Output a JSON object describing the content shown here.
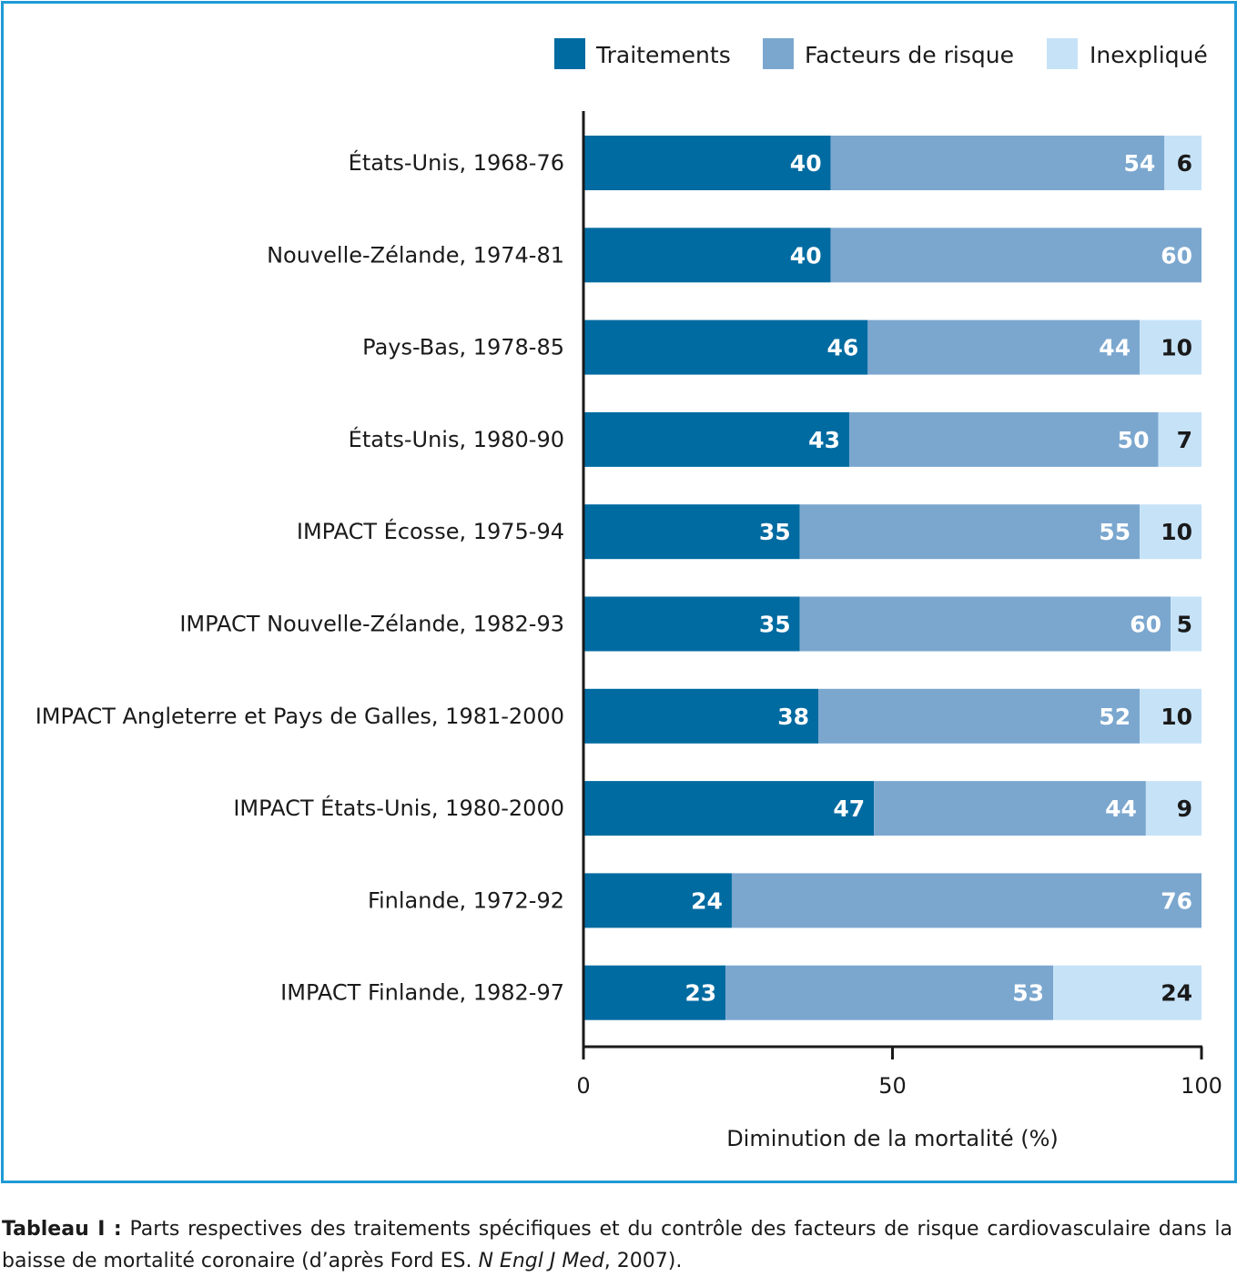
{
  "chart_data": {
    "type": "bar",
    "orientation": "horizontal",
    "stacked": true,
    "categories": [
      "États-Unis, 1968-76",
      "Nouvelle-Zélande, 1974-81",
      "Pays-Bas, 1978-85",
      "États-Unis, 1980-90",
      "IMPACT Écosse, 1975-94",
      "IMPACT Nouvelle-Zélande, 1982-93",
      "IMPACT Angleterre et Pays de Galles, 1981-2000",
      "IMPACT États-Unis, 1980-2000",
      "Finlande, 1972-92",
      "IMPACT Finlande, 1982-97"
    ],
    "series": [
      {
        "name": "Traitements",
        "color": "#006ba1",
        "label_color": "#ffffff",
        "values": [
          40,
          40,
          46,
          43,
          35,
          35,
          38,
          47,
          24,
          23
        ]
      },
      {
        "name": "Facteurs de risque",
        "color": "#7ba7cf",
        "label_color": "#ffffff",
        "values": [
          54,
          60,
          44,
          50,
          55,
          60,
          52,
          44,
          76,
          53
        ]
      },
      {
        "name": "Inexpliqué",
        "color": "#c6e2f7",
        "label_color": "#1a1a1a",
        "values": [
          6,
          null,
          10,
          7,
          10,
          5,
          10,
          9,
          null,
          24
        ]
      }
    ],
    "xlim": [
      0,
      100
    ],
    "xticks": [
      "0",
      "50",
      "100"
    ],
    "xlabel": "Diminution de la mortalité (%)",
    "ylabel": "",
    "title": "",
    "legend_position": "top-right",
    "grid": false,
    "frame_color": "#1f9ad6"
  },
  "caption": {
    "label": "Tableau I :",
    "text_before": "Parts respectives des traitements spécifiques et du contrôle des facteurs de risque cardiovasculaire dans la baisse de mortalité coronaire (d’après Ford ES. ",
    "journal": "N Engl J Med",
    "text_after": ", 2007)."
  }
}
